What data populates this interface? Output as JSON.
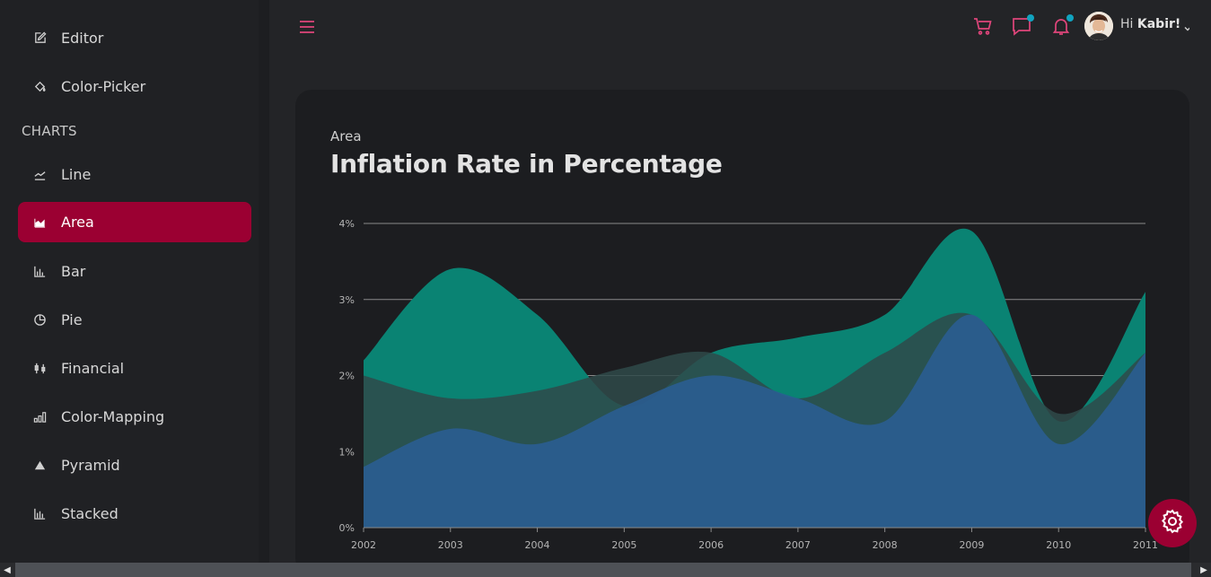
{
  "sidebar": {
    "items_top": [
      {
        "label": "Editor",
        "icon": "edit-icon"
      },
      {
        "label": "Color-Picker",
        "icon": "paint-bucket-icon"
      }
    ],
    "section": "CHARTS",
    "items": [
      {
        "label": "Line",
        "icon": "line-chart-icon"
      },
      {
        "label": "Area",
        "icon": "area-chart-icon",
        "active": true
      },
      {
        "label": "Bar",
        "icon": "bar-chart-icon"
      },
      {
        "label": "Pie",
        "icon": "pie-chart-icon"
      },
      {
        "label": "Financial",
        "icon": "candlestick-icon"
      },
      {
        "label": "Color-Mapping",
        "icon": "column-bars-icon"
      },
      {
        "label": "Pyramid",
        "icon": "pyramid-icon"
      },
      {
        "label": "Stacked",
        "icon": "stacked-bar-icon"
      }
    ]
  },
  "header": {
    "greeting": "Hi",
    "user_name": "Kabir!"
  },
  "card": {
    "subtitle": "Area",
    "title": "Inflation Rate in Percentage"
  },
  "colors": {
    "accent": "#9b0032",
    "icon_pink": "#e0457b",
    "notify_dot": "#11a4c0",
    "series_teal": "#0a8373",
    "series_dark": "#2f4a4a",
    "series_blue": "#2a5d93"
  },
  "chart_data": {
    "type": "area",
    "title": "",
    "xlabel": "",
    "ylabel": "",
    "x": [
      "2002",
      "2003",
      "2004",
      "2005",
      "2006",
      "2007",
      "2008",
      "2009",
      "2010",
      "2011"
    ],
    "ylim": [
      0,
      4
    ],
    "yticks": [
      "0%",
      "1%",
      "2%",
      "3%",
      "4%"
    ],
    "grid": true,
    "series": [
      {
        "values": [
          2.2,
          3.4,
          2.8,
          1.6,
          2.3,
          2.5,
          2.8,
          3.9,
          1.4,
          3.1
        ]
      },
      {
        "values": [
          2.0,
          1.7,
          1.8,
          2.1,
          2.3,
          1.7,
          2.3,
          2.8,
          1.5,
          2.3
        ]
      },
      {
        "values": [
          0.8,
          1.3,
          1.1,
          1.6,
          2.0,
          1.7,
          1.4,
          2.8,
          1.1,
          2.3
        ]
      }
    ]
  }
}
